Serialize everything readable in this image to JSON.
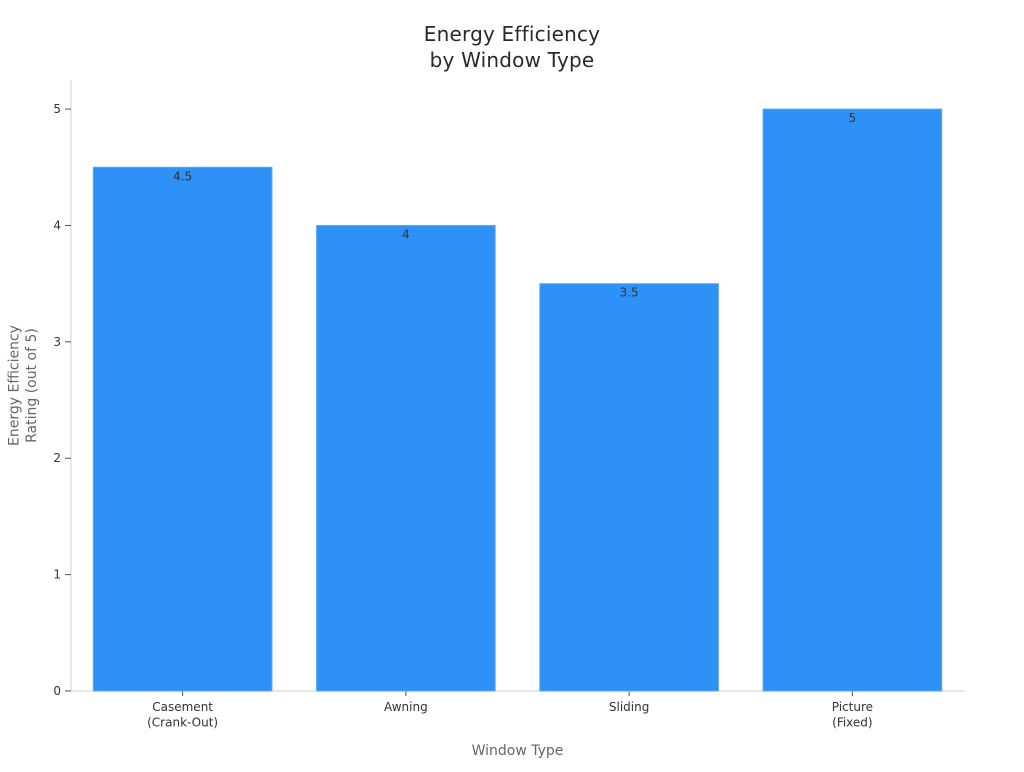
{
  "chart_data": {
    "type": "bar",
    "title": [
      "Energy Efficiency",
      "by Window Type"
    ],
    "xlabel": "Window Type",
    "ylabel": [
      "Energy Efficiency",
      "Rating (out of 5)"
    ],
    "categories": [
      [
        "Casement",
        "(Crank-Out)"
      ],
      [
        "Awning"
      ],
      [
        "Sliding"
      ],
      [
        "Picture",
        "(Fixed)"
      ]
    ],
    "values": [
      4.5,
      4,
      3.5,
      5
    ],
    "value_labels": [
      "4.5",
      "4",
      "3.5",
      "5"
    ],
    "ylim": [
      0,
      5.25
    ],
    "yticks": [
      0,
      1,
      2,
      3,
      4,
      5
    ],
    "bar_color": "#2e91f7",
    "bar_edge_color": "#5aa9f9",
    "grid": false,
    "legend": "none"
  }
}
